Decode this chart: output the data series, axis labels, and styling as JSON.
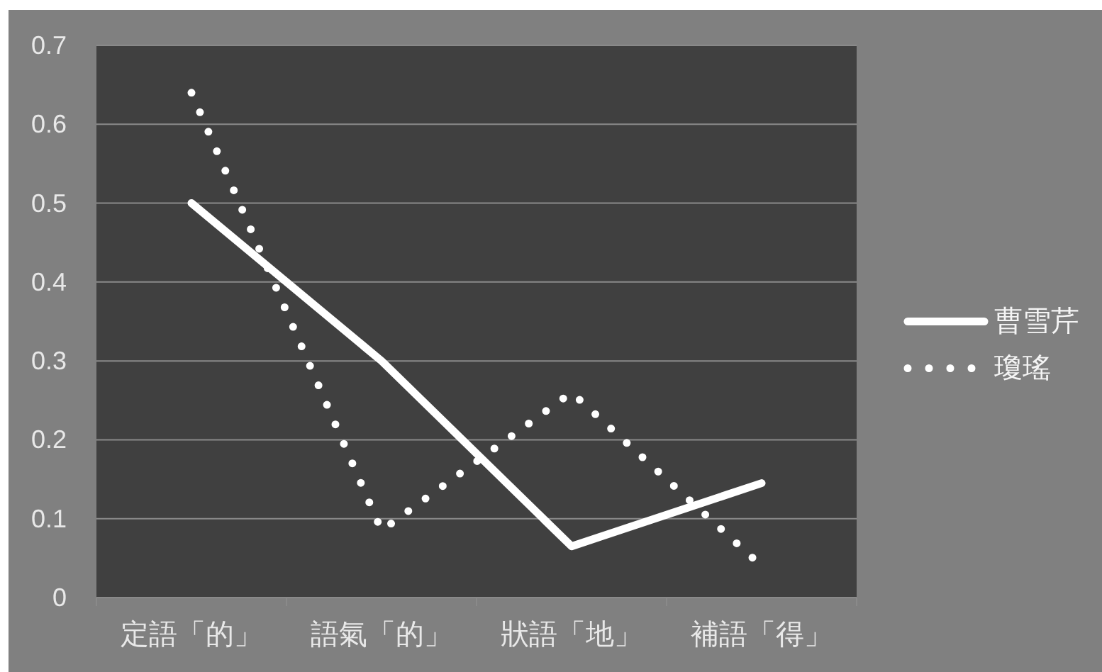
{
  "chart_data": {
    "type": "line",
    "categories": [
      "定語「的」",
      "語氣「的」",
      "狀語「地」",
      "補語「得」"
    ],
    "series": [
      {
        "name": "曹雪芹",
        "color": "#ffffff",
        "line_style": "solid",
        "values": [
          0.5,
          0.3,
          0.065,
          0.145
        ]
      },
      {
        "name": "瓊瑤",
        "color": "#ffffff",
        "line_style": "dotted",
        "values": [
          0.64,
          0.085,
          0.26,
          0.04
        ]
      }
    ],
    "ylim": [
      0,
      0.7
    ],
    "yticks": [
      0,
      0.1,
      0.2,
      0.3,
      0.4,
      0.5,
      0.6,
      0.7
    ],
    "grid": "y",
    "legend": "right"
  }
}
